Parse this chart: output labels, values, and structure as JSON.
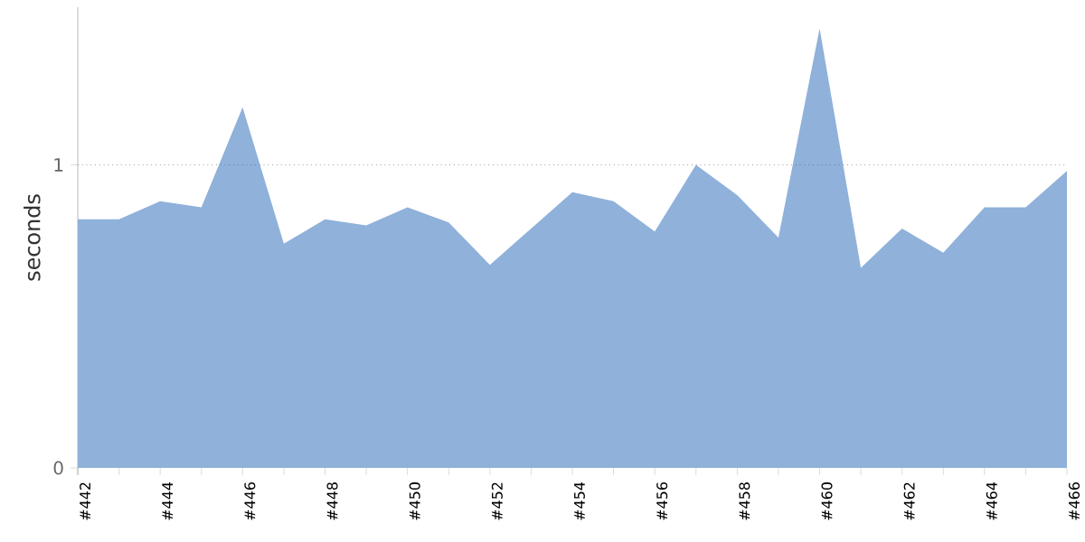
{
  "chart_data": {
    "type": "area",
    "ylabel": "seconds",
    "categories": [
      "#442",
      null,
      "#444",
      null,
      "#446",
      null,
      "#448",
      null,
      "#450",
      null,
      "#452",
      null,
      "#454",
      null,
      "#456",
      null,
      "#458",
      null,
      "#460",
      null,
      "#462",
      null,
      "#464",
      null,
      "#466"
    ],
    "series": [
      {
        "color": "#8fb1da",
        "values": [
          0.82,
          0.82,
          0.88,
          0.86,
          1.19,
          0.74,
          0.82,
          0.8,
          0.86,
          0.81,
          0.67,
          0.79,
          0.91,
          0.88,
          0.78,
          1.0,
          0.9,
          0.76,
          1.45,
          0.66,
          0.79,
          0.71,
          0.86,
          0.86,
          0.98
        ]
      }
    ],
    "ylim": [
      0,
      1.52
    ],
    "yticks": [
      0,
      1
    ],
    "ref_lines": [
      {
        "axis": "y",
        "value": 1,
        "line_style": "dotted",
        "color": "#666666"
      }
    ]
  }
}
